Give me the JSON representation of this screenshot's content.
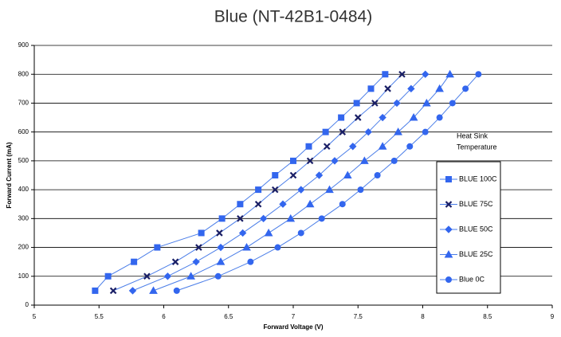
{
  "chart_data": {
    "type": "line",
    "title": "Blue (NT-42B1-0484)",
    "x_label": "Forward Voltage  (V)",
    "y_label": "Forward Current (mA)",
    "annotation": [
      "Heat Sink",
      "Temperature"
    ],
    "xlim": [
      5,
      9
    ],
    "xticks": [
      5,
      5.5,
      6,
      6.5,
      7,
      7.5,
      8,
      8.5,
      9
    ],
    "ylim": [
      0,
      900
    ],
    "yticks": [
      0,
      100,
      200,
      300,
      400,
      500,
      600,
      700,
      800,
      900
    ],
    "grid": true,
    "legend": "right",
    "series": [
      {
        "name": "BLUE 100C",
        "color": "#3366ee",
        "marker": "square",
        "x": [
          5.47,
          5.57,
          5.77,
          5.95,
          6.29,
          6.45,
          6.59,
          6.73,
          6.86,
          7.0,
          7.12,
          7.25,
          7.37,
          7.49,
          7.6,
          7.71
        ],
        "values": [
          50,
          100,
          150,
          200,
          250,
          300,
          350,
          400,
          450,
          500,
          550,
          600,
          650,
          700,
          750,
          800
        ]
      },
      {
        "name": "BLUE 75C",
        "color": "#1a1f66",
        "marker": "x",
        "x": [
          5.61,
          5.87,
          6.09,
          6.27,
          6.43,
          6.59,
          6.73,
          6.86,
          7.0,
          7.13,
          7.26,
          7.38,
          7.5,
          7.63,
          7.73,
          7.84
        ],
        "values": [
          50,
          100,
          150,
          200,
          250,
          300,
          350,
          400,
          450,
          500,
          550,
          600,
          650,
          700,
          750,
          800
        ]
      },
      {
        "name": "BLUE 50C",
        "color": "#3366ee",
        "marker": "diamond",
        "x": [
          5.76,
          6.03,
          6.25,
          6.44,
          6.61,
          6.77,
          6.92,
          7.06,
          7.2,
          7.32,
          7.46,
          7.58,
          7.69,
          7.8,
          7.91,
          8.02
        ],
        "values": [
          50,
          100,
          150,
          200,
          250,
          300,
          350,
          400,
          450,
          500,
          550,
          600,
          650,
          700,
          750,
          800
        ]
      },
      {
        "name": "BLUE 25C",
        "color": "#3366ee",
        "marker": "triangle",
        "x": [
          5.92,
          6.21,
          6.44,
          6.64,
          6.81,
          6.98,
          7.13,
          7.28,
          7.42,
          7.55,
          7.69,
          7.81,
          7.93,
          8.03,
          8.13,
          8.21
        ],
        "values": [
          50,
          100,
          150,
          200,
          250,
          300,
          350,
          400,
          450,
          500,
          550,
          600,
          650,
          700,
          750,
          800
        ]
      },
      {
        "name": "Blue 0C",
        "color": "#3366ee",
        "marker": "circle",
        "x": [
          6.1,
          6.42,
          6.67,
          6.88,
          7.06,
          7.22,
          7.38,
          7.52,
          7.65,
          7.78,
          7.9,
          8.02,
          8.13,
          8.23,
          8.33,
          8.43
        ],
        "values": [
          50,
          100,
          150,
          200,
          250,
          300,
          350,
          400,
          450,
          500,
          550,
          600,
          650,
          700,
          750,
          800
        ]
      }
    ]
  }
}
